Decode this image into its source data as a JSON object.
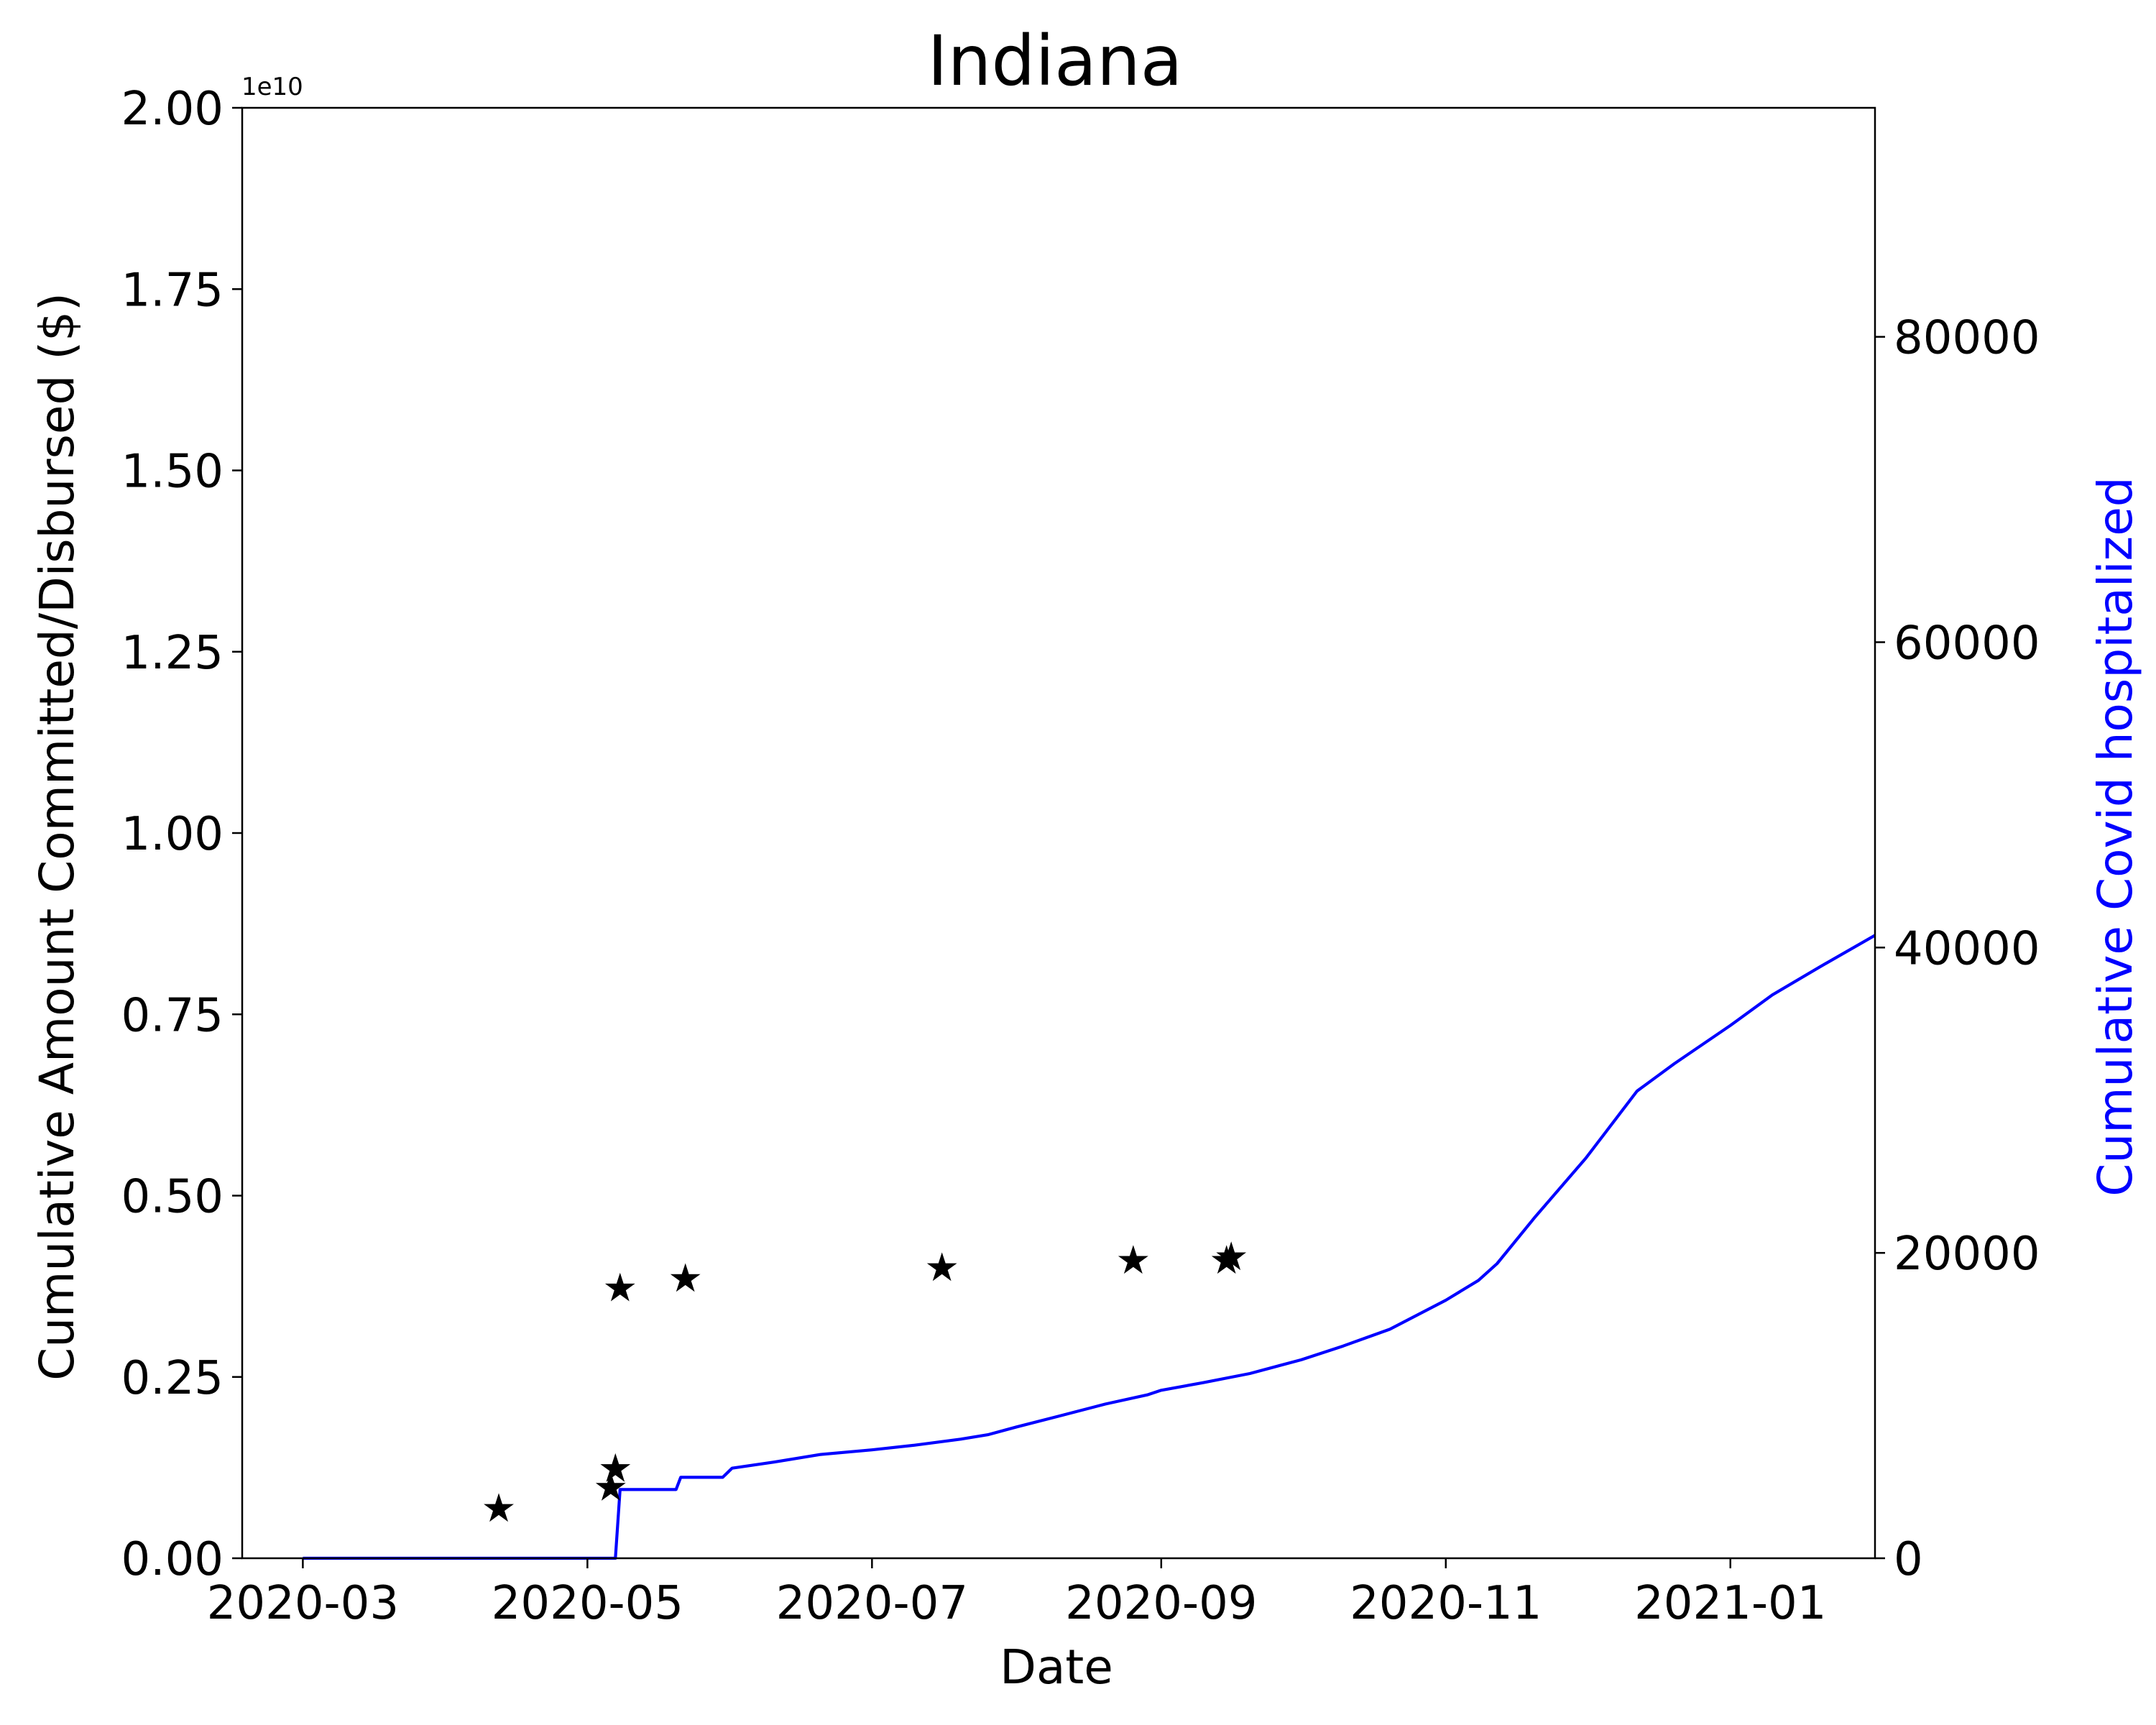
{
  "chart_data": {
    "type": "line",
    "title": "Indiana",
    "xlabel": "Date",
    "ylabel_left": "Cumulative Amount Committed/Disbursed ($)",
    "ylabel_right": "Cumulative Covid hospitalized",
    "left_axis_offset_label": "1e10",
    "x_range": [
      "2020-02-17",
      "2021-02-01"
    ],
    "x_ticks": [
      "2020-03",
      "2020-05",
      "2020-07",
      "2020-09",
      "2020-11",
      "2021-01"
    ],
    "x_tick_dates": [
      "2020-03-01",
      "2020-05-01",
      "2020-07-01",
      "2020-09-01",
      "2020-11-01",
      "2021-01-01"
    ],
    "ylim_left": [
      0,
      2.0
    ],
    "yticks_left": [
      "0.00",
      "0.25",
      "0.50",
      "0.75",
      "1.00",
      "1.25",
      "1.50",
      "1.75",
      "2.00"
    ],
    "ylim_right": [
      0,
      95000
    ],
    "yticks_right": [
      "0",
      "20000",
      "40000",
      "60000",
      "80000"
    ],
    "colors": {
      "axis": "#000000",
      "hospitalized_line": "#0000ff",
      "markers": "#000000"
    },
    "series": [
      {
        "name": "Cumulative Amount Committed/Disbursed",
        "axis": "left",
        "style": "star-markers",
        "units": "1e10 $",
        "points": [
          {
            "date": "2020-04-12",
            "value": 0.068
          },
          {
            "date": "2020-05-06",
            "value": 0.097
          },
          {
            "date": "2020-05-07",
            "value": 0.123
          },
          {
            "date": "2020-05-08",
            "value": 0.372
          },
          {
            "date": "2020-05-22",
            "value": 0.385
          },
          {
            "date": "2020-07-16",
            "value": 0.4
          },
          {
            "date": "2020-08-26",
            "value": 0.41
          },
          {
            "date": "2020-09-15",
            "value": 0.41
          },
          {
            "date": "2020-09-16",
            "value": 0.415
          }
        ]
      },
      {
        "name": "Cumulative Covid hospitalized",
        "axis": "right",
        "style": "line",
        "points": [
          {
            "date": "2020-03-01",
            "value": 0
          },
          {
            "date": "2020-05-07",
            "value": 0
          },
          {
            "date": "2020-05-08",
            "value": 4500
          },
          {
            "date": "2020-05-20",
            "value": 4500
          },
          {
            "date": "2020-05-21",
            "value": 5300
          },
          {
            "date": "2020-05-30",
            "value": 5300
          },
          {
            "date": "2020-06-01",
            "value": 5900
          },
          {
            "date": "2020-06-10",
            "value": 6300
          },
          {
            "date": "2020-06-20",
            "value": 6800
          },
          {
            "date": "2020-07-01",
            "value": 7100
          },
          {
            "date": "2020-07-10",
            "value": 7400
          },
          {
            "date": "2020-07-20",
            "value": 7800
          },
          {
            "date": "2020-07-26",
            "value": 8100
          },
          {
            "date": "2020-08-01",
            "value": 8600
          },
          {
            "date": "2020-08-10",
            "value": 9300
          },
          {
            "date": "2020-08-20",
            "value": 10100
          },
          {
            "date": "2020-08-29",
            "value": 10700
          },
          {
            "date": "2020-09-01",
            "value": 11000
          },
          {
            "date": "2020-09-10",
            "value": 11500
          },
          {
            "date": "2020-09-20",
            "value": 12100
          },
          {
            "date": "2020-10-01",
            "value": 13000
          },
          {
            "date": "2020-10-10",
            "value": 13900
          },
          {
            "date": "2020-10-20",
            "value": 15000
          },
          {
            "date": "2020-11-01",
            "value": 16900
          },
          {
            "date": "2020-11-08",
            "value": 18200
          },
          {
            "date": "2020-11-12",
            "value": 19300
          },
          {
            "date": "2020-11-20",
            "value": 22300
          },
          {
            "date": "2020-12-01",
            "value": 26200
          },
          {
            "date": "2020-12-05",
            "value": 27800
          },
          {
            "date": "2020-12-12",
            "value": 30600
          },
          {
            "date": "2020-12-20",
            "value": 32400
          },
          {
            "date": "2021-01-01",
            "value": 34900
          },
          {
            "date": "2021-01-10",
            "value": 36900
          },
          {
            "date": "2021-01-20",
            "value": 38700
          },
          {
            "date": "2021-02-01",
            "value": 40800
          }
        ]
      }
    ]
  }
}
